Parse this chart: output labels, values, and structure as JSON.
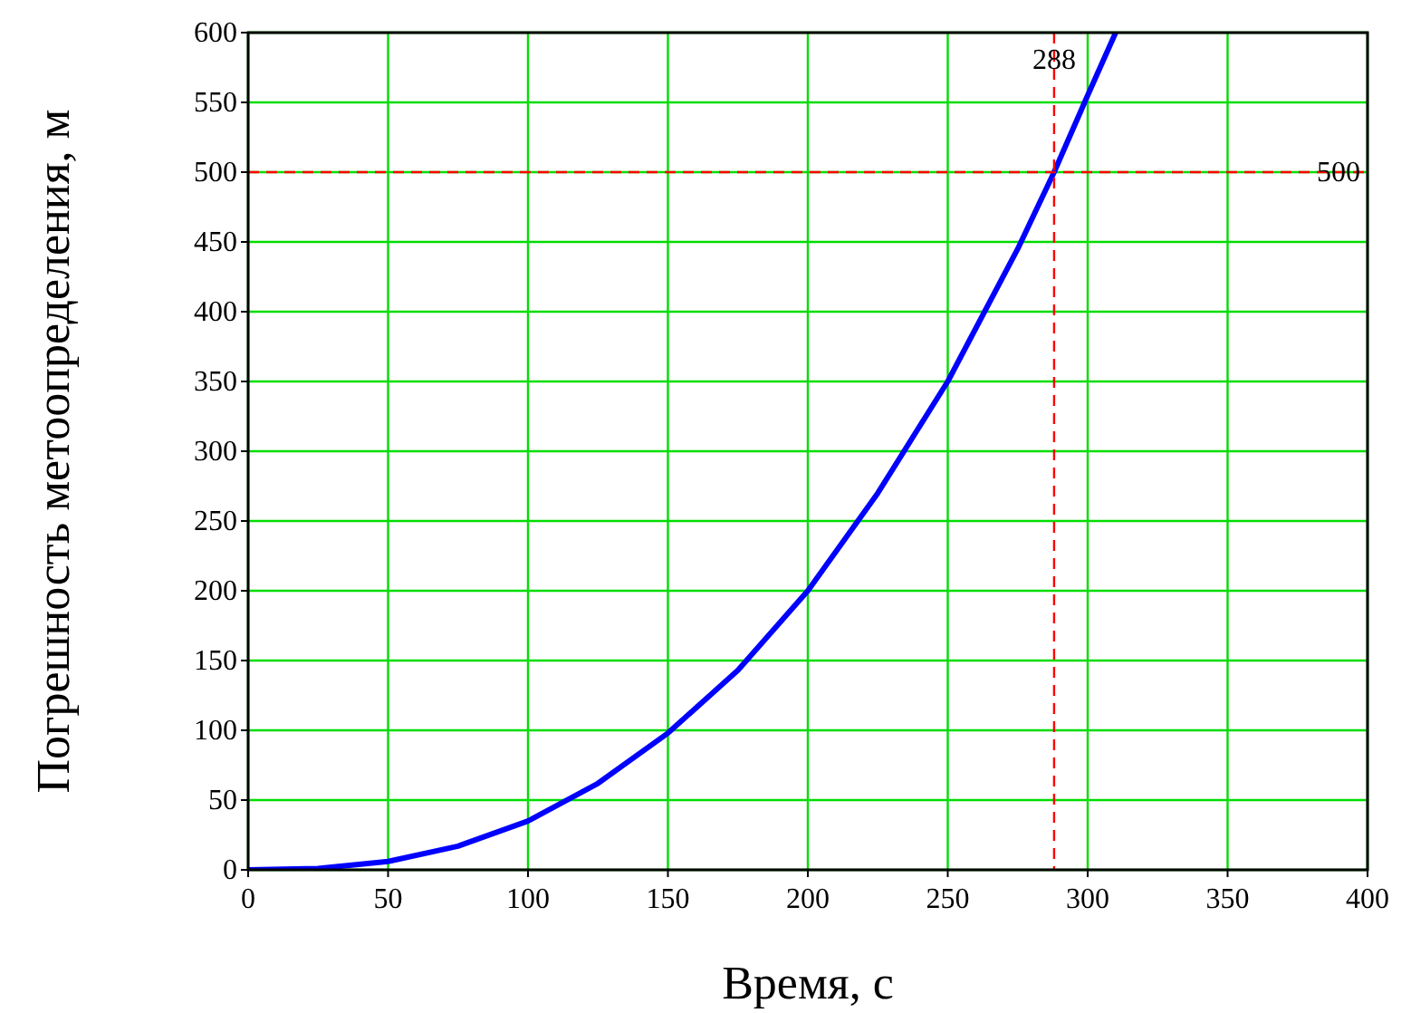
{
  "chart_data": {
    "type": "line",
    "xlabel": "Время, с",
    "ylabel": "Погрешность метоопределения, м",
    "x": [
      0,
      25,
      50,
      75,
      100,
      125,
      150,
      175,
      200,
      225,
      250,
      275,
      288,
      300,
      310
    ],
    "series": [
      {
        "color": "#0000ff",
        "values": [
          0,
          1,
          6,
          17,
          35,
          62,
          98,
          143,
          200,
          270,
          350,
          445,
          500,
          555,
          600
        ]
      }
    ],
    "xlim": [
      0,
      400
    ],
    "ylim": [
      0,
      600
    ],
    "xticks": [
      0,
      50,
      100,
      150,
      200,
      250,
      300,
      350,
      400
    ],
    "yticks": [
      0,
      50,
      100,
      150,
      200,
      250,
      300,
      350,
      400,
      450,
      500,
      550,
      600
    ],
    "grid": true,
    "marker": "none",
    "line_style": "solid",
    "ref_lines": [
      {
        "axis": "x",
        "value": 288,
        "label": "288",
        "color": "#ff0000",
        "line_style": "dashed"
      },
      {
        "axis": "y",
        "value": 500,
        "label": "500",
        "color": "#ff0000",
        "line_style": "dashed"
      }
    ]
  }
}
